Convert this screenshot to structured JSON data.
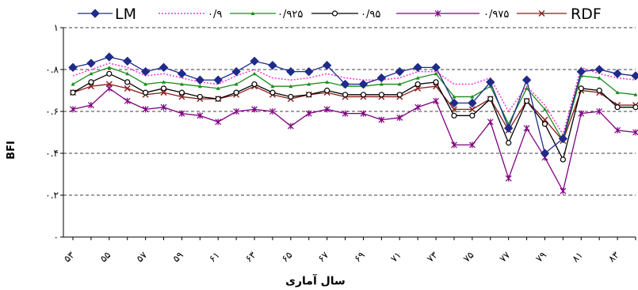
{
  "chart_data": {
    "type": "line",
    "title": "",
    "xlabel": "سال آماری",
    "ylabel": "BFI",
    "ylim": [
      0,
      1
    ],
    "yticks": [
      {
        "value": 0,
        "label": "۰"
      },
      {
        "value": 0.2,
        "label": "۰.۲"
      },
      {
        "value": 0.4,
        "label": "۰.۴"
      },
      {
        "value": 0.6,
        "label": "۰.۶"
      },
      {
        "value": 0.8,
        "label": "۰.۸"
      },
      {
        "value": 1,
        "label": "۱"
      }
    ],
    "grid": "horizontal-dashed",
    "legend": "top",
    "xticks": [
      {
        "year": 53,
        "label": "۵۳"
      },
      {
        "year": 55,
        "label": "۵۵"
      },
      {
        "year": 57,
        "label": "۵۷"
      },
      {
        "year": 59,
        "label": "۵۹"
      },
      {
        "year": 61,
        "label": "۶۱"
      },
      {
        "year": 63,
        "label": "۶۳"
      },
      {
        "year": 65,
        "label": "۶۵"
      },
      {
        "year": 67,
        "label": "۶۷"
      },
      {
        "year": 69,
        "label": "۶۹"
      },
      {
        "year": 71,
        "label": "۷۱"
      },
      {
        "year": 73,
        "label": "۷۳"
      },
      {
        "year": 75,
        "label": "۷۵"
      },
      {
        "year": 77,
        "label": "۷۷"
      },
      {
        "year": 79,
        "label": "۷۹"
      },
      {
        "year": 81,
        "label": "۸۱"
      },
      {
        "year": 83,
        "label": "۸۳"
      }
    ],
    "x": [
      53,
      54,
      55,
      56,
      57,
      58,
      59,
      60,
      61,
      62,
      63,
      64,
      65,
      66,
      67,
      68,
      69,
      70,
      71,
      72,
      73,
      74,
      75,
      76,
      77,
      78,
      79,
      80,
      81,
      82,
      83,
      84
    ],
    "series": [
      {
        "name": "LM",
        "color": "#1f2a8a",
        "marker": "diamond",
        "dash": "solid",
        "values": [
          0.81,
          0.83,
          0.86,
          0.84,
          0.79,
          0.81,
          0.78,
          0.75,
          0.75,
          0.79,
          0.84,
          0.82,
          0.79,
          0.79,
          0.82,
          0.73,
          0.73,
          0.76,
          0.79,
          0.81,
          0.81,
          0.64,
          0.64,
          0.74,
          0.52,
          0.75,
          0.4,
          0.47,
          0.79,
          0.8,
          0.78,
          0.77
        ]
      },
      {
        "name": "۰/۹",
        "color": "#ff33cc",
        "marker": "none",
        "dash": "dotted",
        "values": [
          0.77,
          0.8,
          0.83,
          0.81,
          0.77,
          0.78,
          0.76,
          0.74,
          0.73,
          0.77,
          0.8,
          0.76,
          0.75,
          0.76,
          0.78,
          0.76,
          0.75,
          0.75,
          0.76,
          0.79,
          0.79,
          0.73,
          0.73,
          0.76,
          0.6,
          0.72,
          0.63,
          0.49,
          0.81,
          0.78,
          0.76,
          0.75
        ]
      },
      {
        "name": "۰/۹۲۵",
        "color": "#1a8c1a",
        "marker": "triangle",
        "dash": "solid",
        "values": [
          0.73,
          0.78,
          0.81,
          0.78,
          0.73,
          0.74,
          0.73,
          0.72,
          0.71,
          0.73,
          0.78,
          0.72,
          0.72,
          0.73,
          0.74,
          0.72,
          0.72,
          0.73,
          0.73,
          0.76,
          0.78,
          0.67,
          0.67,
          0.72,
          0.54,
          0.71,
          0.61,
          0.46,
          0.77,
          0.76,
          0.69,
          0.68
        ]
      },
      {
        "name": "۰/۹۵",
        "color": "#000000",
        "marker": "circle",
        "dash": "solid",
        "values": [
          0.69,
          0.74,
          0.78,
          0.74,
          0.69,
          0.71,
          0.69,
          0.67,
          0.66,
          0.69,
          0.73,
          0.69,
          0.67,
          0.68,
          0.7,
          0.68,
          0.68,
          0.68,
          0.68,
          0.73,
          0.74,
          0.58,
          0.58,
          0.66,
          0.45,
          0.65,
          0.54,
          0.37,
          0.71,
          0.7,
          0.62,
          0.62
        ]
      },
      {
        "name": "۰/۹۷۵",
        "color": "#800080",
        "marker": "star",
        "dash": "solid",
        "values": [
          0.61,
          0.63,
          0.71,
          0.65,
          0.61,
          0.62,
          0.59,
          0.58,
          0.55,
          0.6,
          0.61,
          0.6,
          0.53,
          0.59,
          0.61,
          0.59,
          0.59,
          0.56,
          0.57,
          0.62,
          0.65,
          0.44,
          0.44,
          0.55,
          0.28,
          0.52,
          0.38,
          0.22,
          0.59,
          0.6,
          0.51,
          0.5
        ]
      },
      {
        "name": "RDF",
        "color": "#8b1a1a",
        "marker": "x",
        "dash": "solid",
        "values": [
          0.69,
          0.72,
          0.73,
          0.71,
          0.68,
          0.69,
          0.67,
          0.66,
          0.66,
          0.68,
          0.72,
          0.68,
          0.66,
          0.68,
          0.69,
          0.67,
          0.67,
          0.67,
          0.67,
          0.71,
          0.72,
          0.61,
          0.61,
          0.66,
          0.51,
          0.65,
          0.56,
          0.46,
          0.7,
          0.69,
          0.63,
          0.63
        ]
      }
    ]
  }
}
